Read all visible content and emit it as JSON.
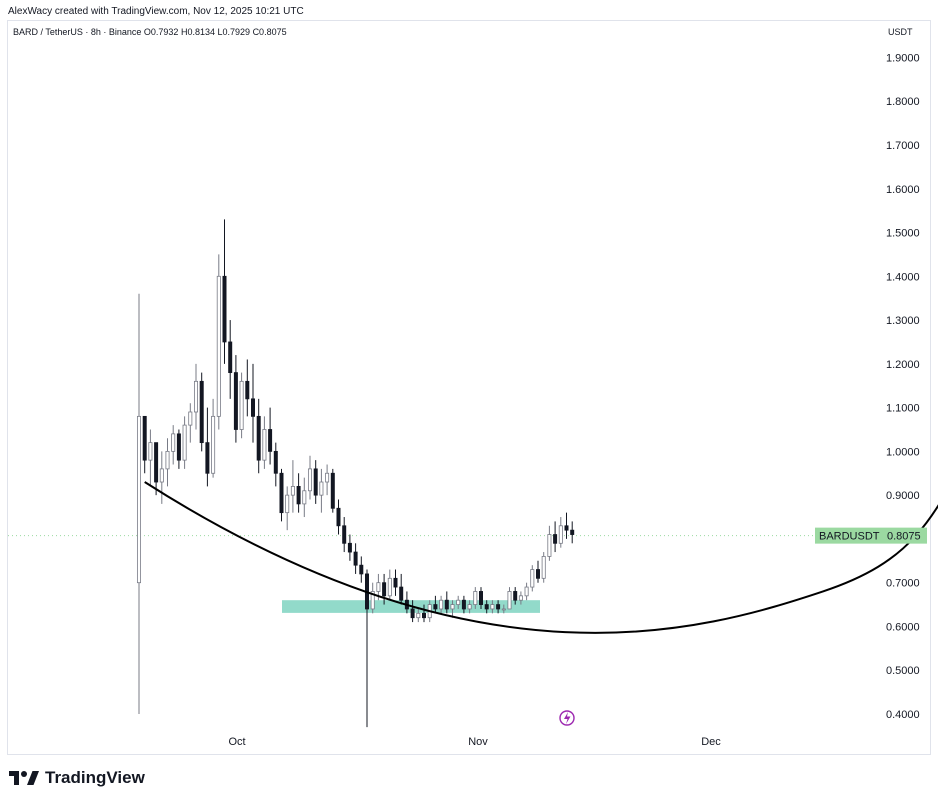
{
  "header": {
    "created_line": "AlexWacy created with TradingView.com, Nov 12, 2025 10:21 UTC",
    "symbol_line": "BARD / TetherUS · 8h · Binance",
    "ohlc": {
      "open": "O0.7932",
      "high": "H0.8134",
      "low": "L0.7929",
      "close": "C0.8075"
    },
    "currency": "USDT"
  },
  "brand": {
    "name": "TradingView",
    "logo_icon": "tradingview-logo-icon"
  },
  "colors": {
    "up": "#787b86",
    "down": "#131722",
    "zone": "#7fd3c1",
    "price_tag": "#9bd9a1",
    "curve": "#000000",
    "flash": "#9c27b0"
  },
  "chart_data": {
    "type": "candlestick",
    "symbol": "BARDUSDT",
    "interval": "8h",
    "exchange": "Binance",
    "last_price": 0.8075,
    "price_label": {
      "symbol": "BARDUSDT",
      "value": "0.8075"
    },
    "y_range": [
      0.38,
      1.97
    ],
    "y_ticks": [
      "1.9000",
      "1.8000",
      "1.7000",
      "1.6000",
      "1.5000",
      "1.4000",
      "1.3000",
      "1.2000",
      "1.1000",
      "1.0000",
      "0.9000",
      "0.7000",
      "0.6000",
      "0.5000",
      "0.4000"
    ],
    "x_ticks": [
      "Oct",
      "Nov",
      "Dec"
    ],
    "support_zone": [
      0.631,
      0.66
    ],
    "ohlc_estimated": [
      [
        0.7,
        1.36,
        0.4,
        1.08
      ],
      [
        1.08,
        1.08,
        0.95,
        0.98
      ],
      [
        0.98,
        1.05,
        0.92,
        1.02
      ],
      [
        1.02,
        1.02,
        0.9,
        0.93
      ],
      [
        0.93,
        1.0,
        0.88,
        0.96
      ],
      [
        0.96,
        1.03,
        0.92,
        1.0
      ],
      [
        1.0,
        1.06,
        0.97,
        1.04
      ],
      [
        1.04,
        1.05,
        0.96,
        0.98
      ],
      [
        0.98,
        1.08,
        0.96,
        1.06
      ],
      [
        1.06,
        1.11,
        1.02,
        1.09
      ],
      [
        1.09,
        1.2,
        1.05,
        1.16
      ],
      [
        1.16,
        1.18,
        1.0,
        1.02
      ],
      [
        1.02,
        1.1,
        0.92,
        0.95
      ],
      [
        0.95,
        1.12,
        0.94,
        1.08
      ],
      [
        1.08,
        1.45,
        1.05,
        1.4
      ],
      [
        1.4,
        1.53,
        1.2,
        1.25
      ],
      [
        1.25,
        1.3,
        1.12,
        1.18
      ],
      [
        1.18,
        1.22,
        1.02,
        1.05
      ],
      [
        1.05,
        1.18,
        1.03,
        1.16
      ],
      [
        1.16,
        1.21,
        1.08,
        1.12
      ],
      [
        1.12,
        1.2,
        1.02,
        1.08
      ],
      [
        1.08,
        1.12,
        0.95,
        0.98
      ],
      [
        0.98,
        1.08,
        0.96,
        1.05
      ],
      [
        1.05,
        1.1,
        0.97,
        1.0
      ],
      [
        1.0,
        1.02,
        0.92,
        0.95
      ],
      [
        0.95,
        0.96,
        0.84,
        0.86
      ],
      [
        0.86,
        0.92,
        0.82,
        0.9
      ],
      [
        0.9,
        0.98,
        0.86,
        0.92
      ],
      [
        0.92,
        0.95,
        0.86,
        0.88
      ],
      [
        0.88,
        0.94,
        0.85,
        0.91
      ],
      [
        0.91,
        0.99,
        0.89,
        0.96
      ],
      [
        0.96,
        0.98,
        0.88,
        0.9
      ],
      [
        0.9,
        0.96,
        0.86,
        0.93
      ],
      [
        0.93,
        0.97,
        0.9,
        0.95
      ],
      [
        0.95,
        0.96,
        0.86,
        0.87
      ],
      [
        0.87,
        0.89,
        0.81,
        0.83
      ],
      [
        0.83,
        0.85,
        0.77,
        0.79
      ],
      [
        0.79,
        0.81,
        0.75,
        0.77
      ],
      [
        0.77,
        0.79,
        0.72,
        0.74
      ],
      [
        0.74,
        0.76,
        0.7,
        0.72
      ],
      [
        0.72,
        0.73,
        0.37,
        0.64
      ],
      [
        0.64,
        0.7,
        0.63,
        0.68
      ],
      [
        0.68,
        0.72,
        0.66,
        0.7
      ],
      [
        0.7,
        0.72,
        0.65,
        0.67
      ],
      [
        0.67,
        0.73,
        0.66,
        0.71
      ],
      [
        0.71,
        0.73,
        0.67,
        0.69
      ],
      [
        0.69,
        0.72,
        0.65,
        0.66
      ],
      [
        0.66,
        0.68,
        0.63,
        0.64
      ],
      [
        0.64,
        0.66,
        0.61,
        0.62
      ],
      [
        0.62,
        0.64,
        0.61,
        0.63
      ],
      [
        0.63,
        0.65,
        0.61,
        0.62
      ],
      [
        0.62,
        0.66,
        0.61,
        0.65
      ],
      [
        0.65,
        0.67,
        0.63,
        0.64
      ],
      [
        0.64,
        0.67,
        0.63,
        0.66
      ],
      [
        0.66,
        0.68,
        0.63,
        0.64
      ],
      [
        0.64,
        0.66,
        0.62,
        0.65
      ],
      [
        0.65,
        0.67,
        0.64,
        0.66
      ],
      [
        0.66,
        0.67,
        0.63,
        0.64
      ],
      [
        0.64,
        0.66,
        0.63,
        0.65
      ],
      [
        0.65,
        0.69,
        0.64,
        0.68
      ],
      [
        0.68,
        0.69,
        0.64,
        0.65
      ],
      [
        0.65,
        0.66,
        0.63,
        0.64
      ],
      [
        0.64,
        0.66,
        0.63,
        0.65
      ],
      [
        0.65,
        0.66,
        0.63,
        0.64
      ],
      [
        0.64,
        0.65,
        0.63,
        0.64
      ],
      [
        0.64,
        0.69,
        0.64,
        0.68
      ],
      [
        0.68,
        0.69,
        0.65,
        0.66
      ],
      [
        0.66,
        0.68,
        0.65,
        0.67
      ],
      [
        0.67,
        0.7,
        0.66,
        0.69
      ],
      [
        0.69,
        0.74,
        0.68,
        0.73
      ],
      [
        0.73,
        0.75,
        0.7,
        0.71
      ],
      [
        0.71,
        0.77,
        0.7,
        0.76
      ],
      [
        0.76,
        0.83,
        0.75,
        0.81
      ],
      [
        0.81,
        0.84,
        0.77,
        0.79
      ],
      [
        0.79,
        0.85,
        0.78,
        0.83
      ],
      [
        0.83,
        0.86,
        0.8,
        0.82
      ],
      [
        0.82,
        0.84,
        0.79,
        0.81
      ]
    ],
    "annotations": {
      "curve_points": [
        [
          0.1,
          0.93
        ],
        [
          6,
          0.6
        ],
        [
          12,
          0.68
        ],
        [
          15.6,
          1.25
        ]
      ],
      "curve_note": "hand-drawn rounding-bottom arc ending in an arrow (x in index units, y in price)"
    }
  }
}
